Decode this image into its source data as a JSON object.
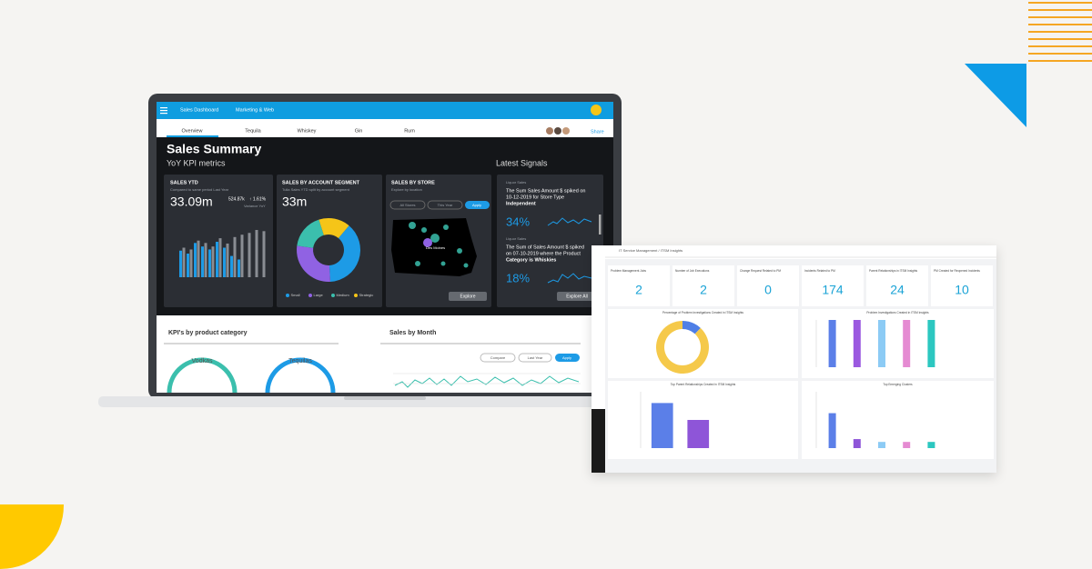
{
  "laptop": {
    "nav": [
      "Sales Dashboard",
      "Marketing & Web"
    ],
    "tabs": [
      "Overview",
      "Tequila",
      "Whiskey",
      "Gin",
      "Rum"
    ],
    "share": "Share",
    "title": "Sales Summary",
    "subtitle": "YoY KPI metrics",
    "signals_title": "Latest Signals",
    "sales_ytd": {
      "title": "SALES YTD",
      "note": "Compared to same period Last Year",
      "value": "33.09m",
      "delta": "524.87k",
      "pct": "↑ 1.61%",
      "variance": "Variance YoY",
      "chart": {
        "type": "bar",
        "ylim": [
          0,
          100
        ],
        "series": [
          {
            "color": "#1d9be6",
            "values": [
              45,
              40,
              58,
              52,
              47,
              60,
              50,
              36,
              30,
              0,
              0,
              0
            ]
          },
          {
            "color": "#8a8d93",
            "values": [
              50,
              47,
              62,
              58,
              52,
              66,
              57,
              68,
              72,
              75,
              80,
              78
            ]
          }
        ]
      }
    },
    "segment": {
      "title": "SALES BY ACCOUNT SEGMENT",
      "note": "Tulia Sales YTD split by account segment",
      "value": "33m",
      "chart": {
        "type": "donut",
        "series": [
          {
            "name": "Small",
            "color": "#1d9be6",
            "value": 38
          },
          {
            "name": "Large",
            "color": "#9062e3",
            "value": 28
          },
          {
            "name": "Medium",
            "color": "#3bbfad",
            "value": 18
          },
          {
            "name": "Strategic",
            "color": "#f5c518",
            "value": 16
          }
        ]
      }
    },
    "store": {
      "title": "SALES BY STORE",
      "note": "Explore by location",
      "filters": [
        "All Stores",
        "This Year"
      ],
      "apply": "Apply",
      "city": "Des Moines",
      "button": "Explore"
    },
    "signals": [
      {
        "source": "Liquor Sales",
        "lines": [
          "The Sum Sales Amount $ spiked on",
          "10-12-2019 for Store Type",
          "Independent"
        ],
        "value": "34%"
      },
      {
        "source": "Liquor Sales",
        "lines": [
          "The Sum of Sales Amount $ spiked",
          "on 07-10-2019 where the Product",
          "Category is Whiskies"
        ],
        "value": "18%"
      }
    ],
    "explore_all": "Explore All",
    "kpi_title": "KPI's by product category",
    "kpi_items": [
      "Vodkas",
      "Tequilas"
    ],
    "month_title": "Sales by Month",
    "month_controls": [
      "Compare",
      "Last Year",
      "Apply"
    ]
  },
  "itsm": {
    "breadcrumb": "IT Service Management / ITSM Insights",
    "kpis": [
      {
        "label": "Problem Management Jobs",
        "value": "2"
      },
      {
        "label": "Number of Job Executions",
        "value": "2"
      },
      {
        "label": "Change Request Related to PM",
        "value": "0"
      },
      {
        "label": "Incidents Related to PM",
        "value": "174"
      },
      {
        "label": "Parent Relationships in ITSM Insights",
        "value": "24"
      },
      {
        "label": "PM Created for Reopened Incidents",
        "value": "10"
      }
    ],
    "charts": [
      {
        "type": "donut",
        "title": "Percentage of Problem Investigations Created in ITSM Insights",
        "series": [
          {
            "color": "#4f7fe6",
            "value": 12
          },
          {
            "color": "#f5c94a",
            "value": 88
          }
        ]
      },
      {
        "type": "bar",
        "title": "Problem Investigations Created in ITSM Insights",
        "ylim": [
          0,
          100
        ],
        "colors": [
          "#5b7fe8",
          "#9b59e0",
          "#8ccbf5",
          "#e58bd2",
          "#2cc7c0"
        ],
        "values": [
          100,
          100,
          100,
          100,
          100
        ]
      },
      {
        "type": "bar",
        "title": "Top Parent Relationships Created in ITSM Insights",
        "ylim": [
          0,
          100
        ],
        "colors": [
          "#5b7fe8",
          "#8e55d8"
        ],
        "values": [
          80,
          50
        ]
      },
      {
        "type": "bar",
        "title": "Top Emerging Clusters",
        "ylim": [
          0,
          100
        ],
        "colors": [
          "#5b7fe8",
          "#8e55d8",
          "#8ccbf5",
          "#e58bd2",
          "#2cc7c0"
        ],
        "values": [
          62,
          16,
          11,
          11,
          11
        ]
      }
    ]
  }
}
